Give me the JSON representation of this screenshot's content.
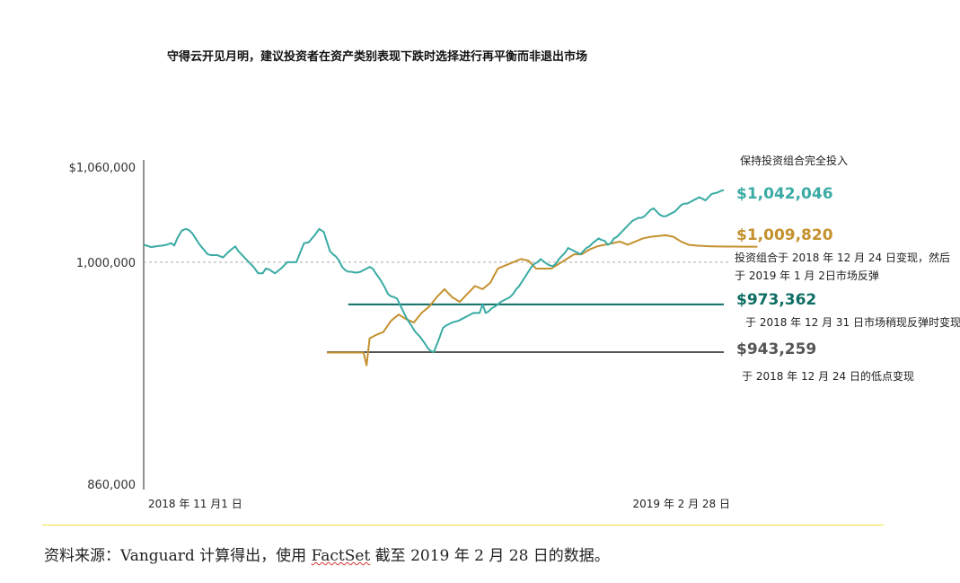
{
  "chart_data": {
    "type": "line",
    "title": "守得云开见月明，建议投资者在资产类别表现下跌时选择进行再平衡而非退出市场",
    "ylim": [
      860000,
      1060000
    ],
    "y_tick_labels": [
      "$1,060,000",
      "1,000,000",
      "860,000"
    ],
    "x_tick_labels": [
      "2018 年 11 月1 日",
      "2019 年 2 月 28 日"
    ],
    "reference_line": 1000000,
    "x_days": [
      0,
      2,
      5,
      8,
      12,
      15,
      18,
      20,
      22,
      25,
      28,
      30,
      32,
      34,
      36,
      38,
      42,
      44,
      48,
      52,
      55,
      58,
      60,
      62,
      65,
      68,
      70,
      72,
      75,
      78,
      80,
      82,
      86,
      90,
      92,
      94,
      96,
      100,
      105,
      108,
      112,
      115,
      118,
      120,
      122,
      124,
      126,
      128,
      130,
      132,
      134,
      136,
      138,
      140,
      142,
      144,
      146,
      148,
      150,
      152,
      155,
      158,
      160,
      162,
      164,
      166,
      168,
      170,
      172,
      174,
      176,
      178,
      181,
      184,
      186,
      188,
      190,
      192,
      194,
      196,
      198,
      200,
      202,
      204,
      206,
      208,
      210,
      212,
      214,
      216,
      218,
      220,
      222,
      224,
      226,
      228,
      230,
      232,
      234,
      236,
      238,
      240,
      242,
      244,
      246,
      248,
      250,
      252,
      254,
      256,
      258,
      260,
      262,
      264,
      266,
      268,
      270,
      272,
      274,
      276,
      278,
      280,
      282,
      284,
      286,
      288,
      290,
      292,
      294,
      296,
      298,
      300,
      302,
      304,
      306,
      308,
      310,
      312,
      314,
      316,
      318,
      320,
      322,
      324,
      326,
      328,
      330,
      332,
      334,
      336,
      338,
      340,
      342,
      344,
      346,
      348,
      350,
      352,
      354,
      356,
      358,
      360,
      362,
      364,
      366,
      368,
      370,
      372,
      374,
      376,
      378,
      380
    ],
    "stay_invested": [
      1011000,
      1010500,
      1009500,
      1010000,
      1010500,
      1011000,
      1012000,
      1010500,
      1015000,
      1020000,
      1021000,
      1020000,
      1018000,
      1015000,
      1012000,
      1009500,
      1005000,
      1004500,
      1004500,
      1003000,
      1006000,
      1008500,
      1010000,
      1007000,
      1004000,
      1001000,
      999000,
      997000,
      993000,
      993000,
      996000,
      995500,
      993000,
      996000,
      998000,
      1000000,
      1000000,
      1000000,
      1012000,
      1012500,
      1017000,
      1021000,
      1019000,
      1013000,
      1007000,
      1005000,
      1003500,
      1001000,
      997000,
      995000,
      994000,
      994000,
      993500,
      993500,
      994000,
      995000,
      996000,
      997000,
      996000,
      993000,
      989000,
      984000,
      980000,
      978500,
      978000,
      977000,
      973000,
      969000,
      965000,
      962000,
      959000,
      956000,
      953000,
      949000,
      946000,
      944000,
      943259,
      948000,
      953000,
      958500,
      960000,
      961000,
      962000,
      962500,
      963000,
      964000,
      965000,
      966000,
      967000,
      968000,
      968000,
      968000,
      973362,
      968000,
      969000,
      971000,
      972000,
      973500,
      975000,
      976000,
      977000,
      978000,
      980000,
      983000,
      985000,
      988000,
      991000,
      994000,
      997000,
      999000,
      1000000,
      1002000,
      1000500,
      999000,
      998000,
      997500,
      999000,
      1002000,
      1004000,
      1006000,
      1009000,
      1008000,
      1007000,
      1006000,
      1005000,
      1007000,
      1009000,
      1010000,
      1012000,
      1013500,
      1015000,
      1014000,
      1013500,
      1011000,
      1012000,
      1015000,
      1016000,
      1018000,
      1020000,
      1022000,
      1024000,
      1026000,
      1027000,
      1028000,
      1028000,
      1029000,
      1031000,
      1033000,
      1034000,
      1032000,
      1030000,
      1029000,
      1029000,
      1030000,
      1031000,
      1032000,
      1034000,
      1036000,
      1037000,
      1037000,
      1038000,
      1039000,
      1040000,
      1041000,
      1040000,
      1039000,
      1041000,
      1043000,
      1043500,
      1044000,
      1045000,
      1045500,
      1046000,
      1046500,
      1046000,
      1045000,
      1044000,
      1042046
    ],
    "series": [
      {
        "name": "保持投资组合完全投入",
        "end_label": "$1,042,046",
        "color": "#3aaba4"
      },
      {
        "name": "投资组合于 2018 年 12 月 24 日变现，然后于 2019 年 1 月 2日市场反弹",
        "end_label": "$1,009,820",
        "color": "#c4912e",
        "x_days": [
          98,
          100,
          110,
          120,
          122,
          124,
          126,
          130,
          135,
          140,
          145,
          150,
          155,
          160,
          165,
          170,
          175,
          180,
          185,
          190,
          195,
          200,
          205,
          210,
          215,
          220,
          225,
          230,
          235,
          240,
          245,
          250,
          255,
          260,
          265,
          270,
          275,
          280,
          285,
          290,
          295,
          300,
          305,
          310,
          315,
          320,
          325,
          330,
          335,
          340,
          345,
          350,
          355,
          360,
          365,
          370,
          375,
          380
        ],
        "values": [
          943000,
          943000,
          943000,
          943000,
          943000,
          935000,
          952000,
          954000,
          956000,
          963000,
          967000,
          964000,
          962000,
          968000,
          972000,
          978000,
          983000,
          978000,
          975000,
          980000,
          985000,
          983000,
          987000,
          996000,
          998000,
          1000000,
          1002000,
          1001000,
          996000,
          996000,
          996000,
          999000,
          1002000,
          1005000,
          1005000,
          1008000,
          1010000,
          1011000,
          1012000,
          1013000,
          1011000,
          1013000,
          1015000,
          1016000,
          1016500,
          1017000,
          1016000,
          1013000,
          1011000,
          1010500,
          1010200,
          1010000,
          1009900,
          1009850,
          1009830,
          1009820,
          1009820,
          1009820
        ]
      },
      {
        "name": "于 2018 年 12 月 31 日市场稍现反弹时变现",
        "end_label": "$973,362",
        "color": "#0e6e64",
        "flat_value": 973362
      },
      {
        "name": "于 2018 年 12 月 24 日的低点变现",
        "end_label": "$943,259",
        "color": "#555555",
        "flat_value": 943259
      }
    ]
  },
  "footer": {
    "source_prefix": "资料来源：Vanguard 计算得出，使用 ",
    "source_link": "FactSet",
    "source_suffix": " 截至 2019 年 2 月 28 日的数据。"
  }
}
